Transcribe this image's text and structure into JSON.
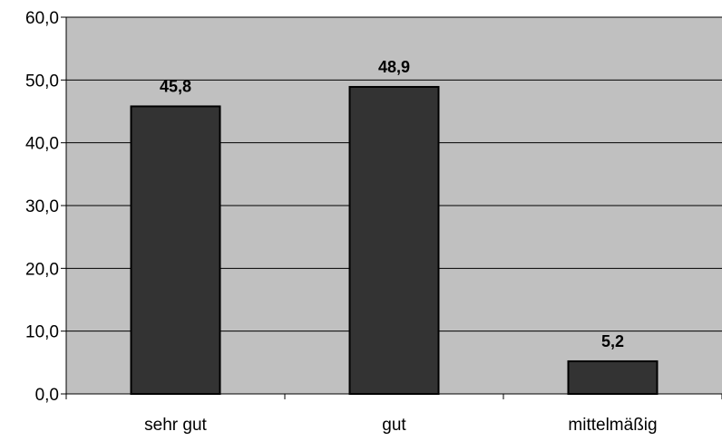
{
  "chart_data": {
    "type": "bar",
    "categories": [
      "sehr gut",
      "gut",
      "mittelmäßig"
    ],
    "values": [
      45.8,
      48.9,
      5.2
    ],
    "value_labels": [
      "45,8",
      "48,9",
      "5,2"
    ],
    "ylim": [
      0,
      60
    ],
    "yticks": [
      0,
      10,
      20,
      30,
      40,
      50,
      60
    ],
    "ytick_labels": [
      "0,0",
      "10,0",
      "20,0",
      "30,0",
      "40,0",
      "50,0",
      "60,0"
    ],
    "title": "",
    "xlabel": "",
    "ylabel": "",
    "grid": true,
    "legend": "none",
    "colors": {
      "plot_background": "#c0c0c0",
      "bar_fill": "#333333",
      "bar_stroke": "#000000",
      "gridline": "#000000",
      "text": "#000000"
    }
  }
}
